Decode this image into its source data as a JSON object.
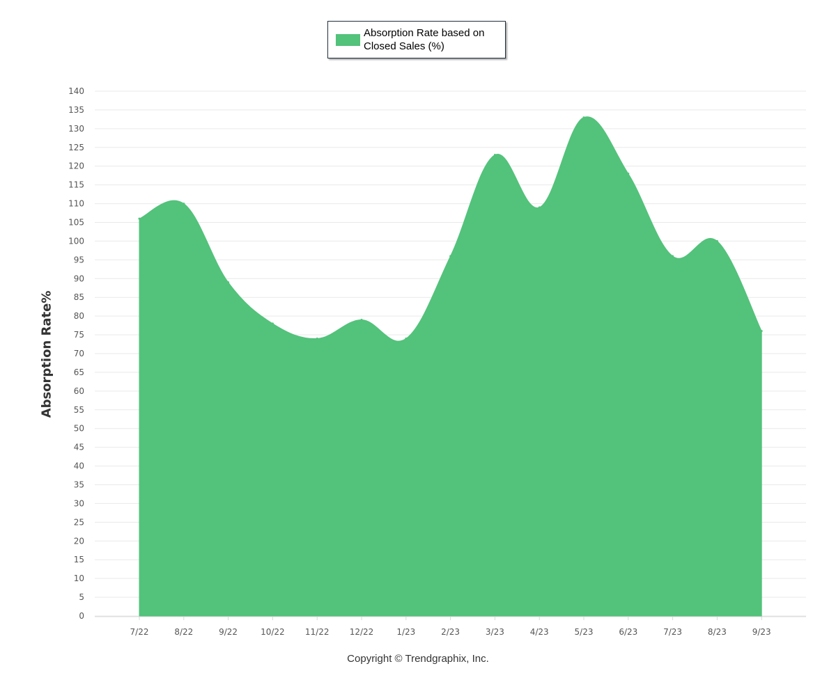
{
  "chart_data": {
    "type": "area",
    "legend": {
      "label": "Absorption Rate based on Closed Sales (%)",
      "placement": "top-center"
    },
    "ylabel": "Absorption Rate%",
    "xlabel": "",
    "ylim": [
      0,
      140
    ],
    "y_ticks": [
      0,
      5,
      10,
      15,
      20,
      25,
      30,
      35,
      40,
      45,
      50,
      55,
      60,
      65,
      70,
      75,
      80,
      85,
      90,
      95,
      100,
      105,
      110,
      115,
      120,
      125,
      130,
      135,
      140
    ],
    "grid": true,
    "categories": [
      "7/22",
      "8/22",
      "9/22",
      "10/22",
      "11/22",
      "12/22",
      "1/23",
      "2/23",
      "3/23",
      "4/23",
      "5/23",
      "6/23",
      "7/23",
      "8/23",
      "9/23"
    ],
    "series": [
      {
        "name": "Absorption Rate based on Closed Sales (%)",
        "values": [
          106,
          110,
          89,
          78,
          74,
          79,
          74,
          96,
          123,
          109,
          133,
          118,
          96,
          100,
          76
        ],
        "color": "#53c27b"
      }
    ]
  },
  "footer": "Copyright © Trendgraphix, Inc."
}
